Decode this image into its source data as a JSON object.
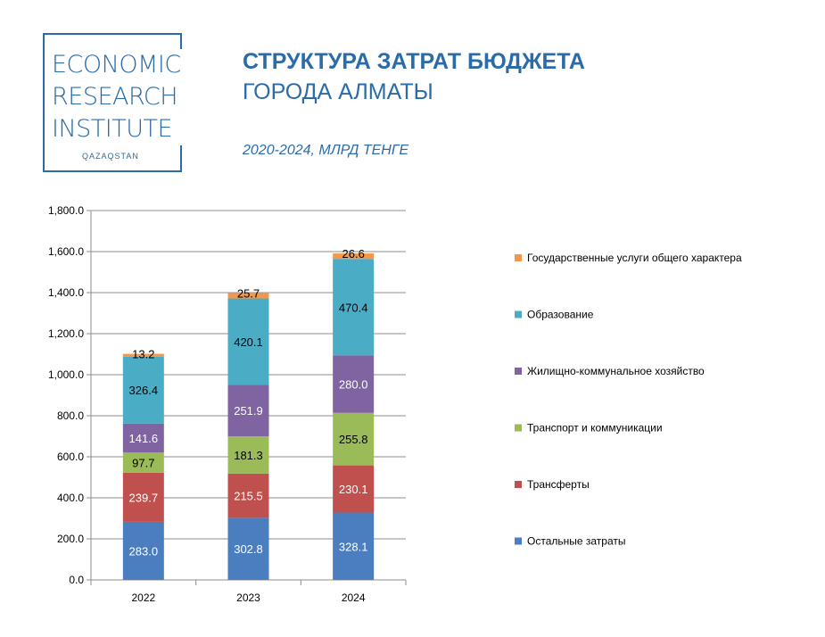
{
  "logo": {
    "line1": "ECONOMIC",
    "line2": "RESEARCH",
    "line3": "INSTITUTE",
    "sub": "QAZAQSTAN",
    "color": "#2a6ba8"
  },
  "header": {
    "title_line1": "СТРУКТУРА ЗАТРАТ БЮДЖЕТА",
    "title_line2": "ГОРОДА АЛМАТЫ",
    "subtitle": "2020-2024, МЛРД ТЕНГЕ"
  },
  "chart_data": {
    "type": "bar",
    "stacked": true,
    "categories": [
      "2022",
      "2023",
      "2024"
    ],
    "ylim": [
      0,
      1800
    ],
    "yticks": [
      0,
      200,
      400,
      600,
      800,
      1000,
      1200,
      1400,
      1600,
      1800
    ],
    "ytick_labels": [
      "0.0",
      "200.0",
      "400.0",
      "600.0",
      "800.0",
      "1,000.0",
      "1,200.0",
      "1,400.0",
      "1,600.0",
      "1,800.0"
    ],
    "grid": true,
    "legend_position": "right",
    "series": [
      {
        "name": "Остальные затраты",
        "color": "#4a7ebf",
        "label_color": "#ffffff",
        "values": [
          283.0,
          302.8,
          328.1
        ],
        "labels": [
          "283.0",
          "302.8",
          "328.1"
        ]
      },
      {
        "name": "Трансферты",
        "color": "#c0504d",
        "label_color": "#ffffff",
        "values": [
          239.7,
          215.5,
          230.1
        ],
        "labels": [
          "239.7",
          "215.5",
          "230.1"
        ]
      },
      {
        "name": "Транспорт и коммуникации",
        "color": "#9bbb59",
        "label_color": "#000000",
        "values": [
          97.7,
          181.3,
          255.8
        ],
        "labels": [
          "97.7",
          "181.3",
          "255.8"
        ]
      },
      {
        "name": "Жилищно-коммунальное хозяйство",
        "color": "#8064a2",
        "label_color": "#ffffff",
        "values": [
          141.6,
          251.9,
          280.0
        ],
        "labels": [
          "141.6",
          "251.9",
          "280.0"
        ]
      },
      {
        "name": "Образование",
        "color": "#4bacc6",
        "label_color": "#000000",
        "values": [
          326.4,
          420.1,
          470.4
        ],
        "labels": [
          "326.4",
          "420.1",
          "470.4"
        ]
      },
      {
        "name": "Государственные услуги общего характера",
        "color": "#f79646",
        "label_color": "#000000",
        "values": [
          13.2,
          25.7,
          26.6
        ],
        "labels": [
          "13.2",
          "25.7",
          "26.6"
        ]
      }
    ]
  }
}
